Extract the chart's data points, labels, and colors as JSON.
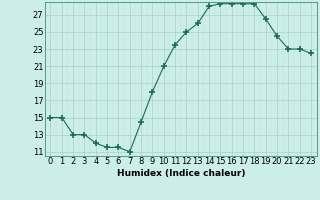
{
  "x": [
    0,
    1,
    2,
    3,
    4,
    5,
    6,
    7,
    8,
    9,
    10,
    11,
    12,
    13,
    14,
    15,
    16,
    17,
    18,
    19,
    20,
    21,
    22,
    23
  ],
  "y": [
    15,
    15,
    13,
    13,
    12,
    11.5,
    11.5,
    11,
    14.5,
    18,
    21,
    23.5,
    25,
    26,
    28,
    28.3,
    28.3,
    28.3,
    28.3,
    26.5,
    24.5,
    23,
    23,
    22.5
  ],
  "line_color": "#1a6b5a",
  "marker": "+",
  "marker_size": 4,
  "bg_color": "#cceee8",
  "grid_color_major": "#aacfcc",
  "grid_color_minor": "#c0e0dc",
  "xlabel": "Humidex (Indice chaleur)",
  "xlim": [
    -0.5,
    23.5
  ],
  "ylim": [
    10.5,
    28.5
  ],
  "yticks": [
    11,
    13,
    15,
    17,
    19,
    21,
    23,
    25,
    27
  ],
  "xtick_labels": [
    "0",
    "1",
    "2",
    "3",
    "4",
    "5",
    "6",
    "7",
    "8",
    "9",
    "10",
    "11",
    "12",
    "13",
    "14",
    "15",
    "16",
    "17",
    "18",
    "19",
    "20",
    "21",
    "22",
    "23"
  ],
  "xlabel_fontsize": 6.5,
  "tick_fontsize": 6
}
